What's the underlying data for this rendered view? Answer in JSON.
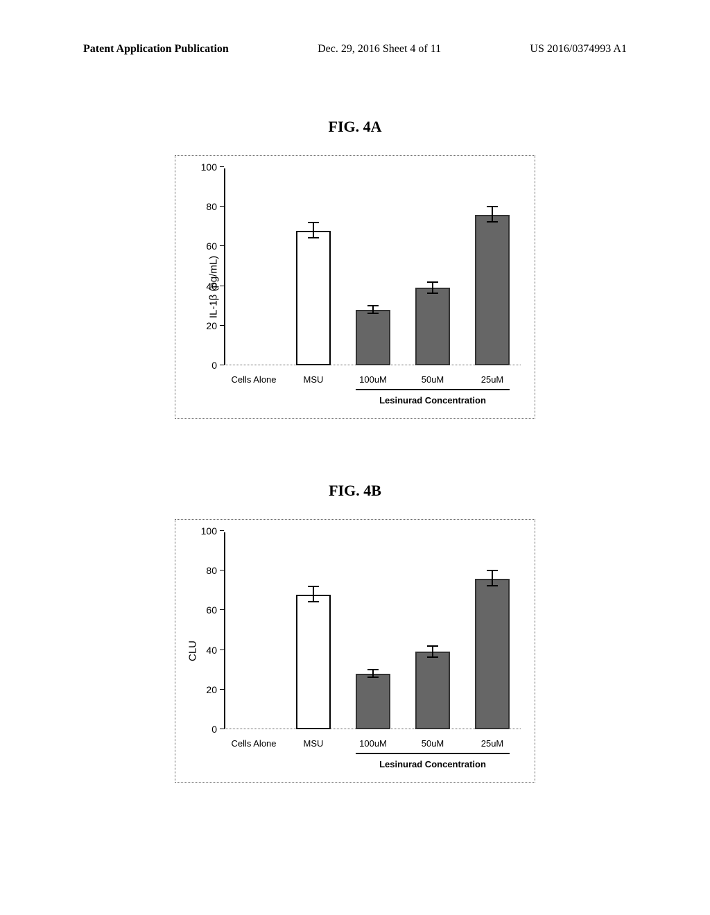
{
  "header": {
    "left": "Patent Application Publication",
    "center": "Dec. 29, 2016  Sheet 4 of 11",
    "right": "US 2016/0374993 A1"
  },
  "figA": {
    "title": "FIG. 4A",
    "y_title": "IL-1β (pg/mL)",
    "y_max": 100,
    "y_step": 20,
    "bracket_label": "Lesinurad Concentration",
    "categories": [
      {
        "label": "Cells Alone",
        "value": 0,
        "err": 0,
        "style": "none"
      },
      {
        "label": "MSU",
        "value": 68,
        "err": 4,
        "style": "msu"
      },
      {
        "label": "100uM",
        "value": 28,
        "err": 2,
        "style": "drug"
      },
      {
        "label": "50uM",
        "value": 39,
        "err": 3,
        "style": "drug"
      },
      {
        "label": "25uM",
        "value": 76,
        "err": 4,
        "style": "drug"
      }
    ]
  },
  "figB": {
    "title": "FIG. 4B",
    "y_title": "CLU",
    "y_max": 100,
    "y_step": 20,
    "bracket_label": "Lesinurad Concentration",
    "categories": [
      {
        "label": "Cells Alone",
        "value": 0,
        "err": 0,
        "style": "none"
      },
      {
        "label": "MSU",
        "value": 68,
        "err": 4,
        "style": "msu"
      },
      {
        "label": "100uM",
        "value": 28,
        "err": 2,
        "style": "drug"
      },
      {
        "label": "50uM",
        "value": 39,
        "err": 3,
        "style": "drug"
      },
      {
        "label": "25uM",
        "value": 76,
        "err": 4,
        "style": "drug"
      }
    ]
  }
}
